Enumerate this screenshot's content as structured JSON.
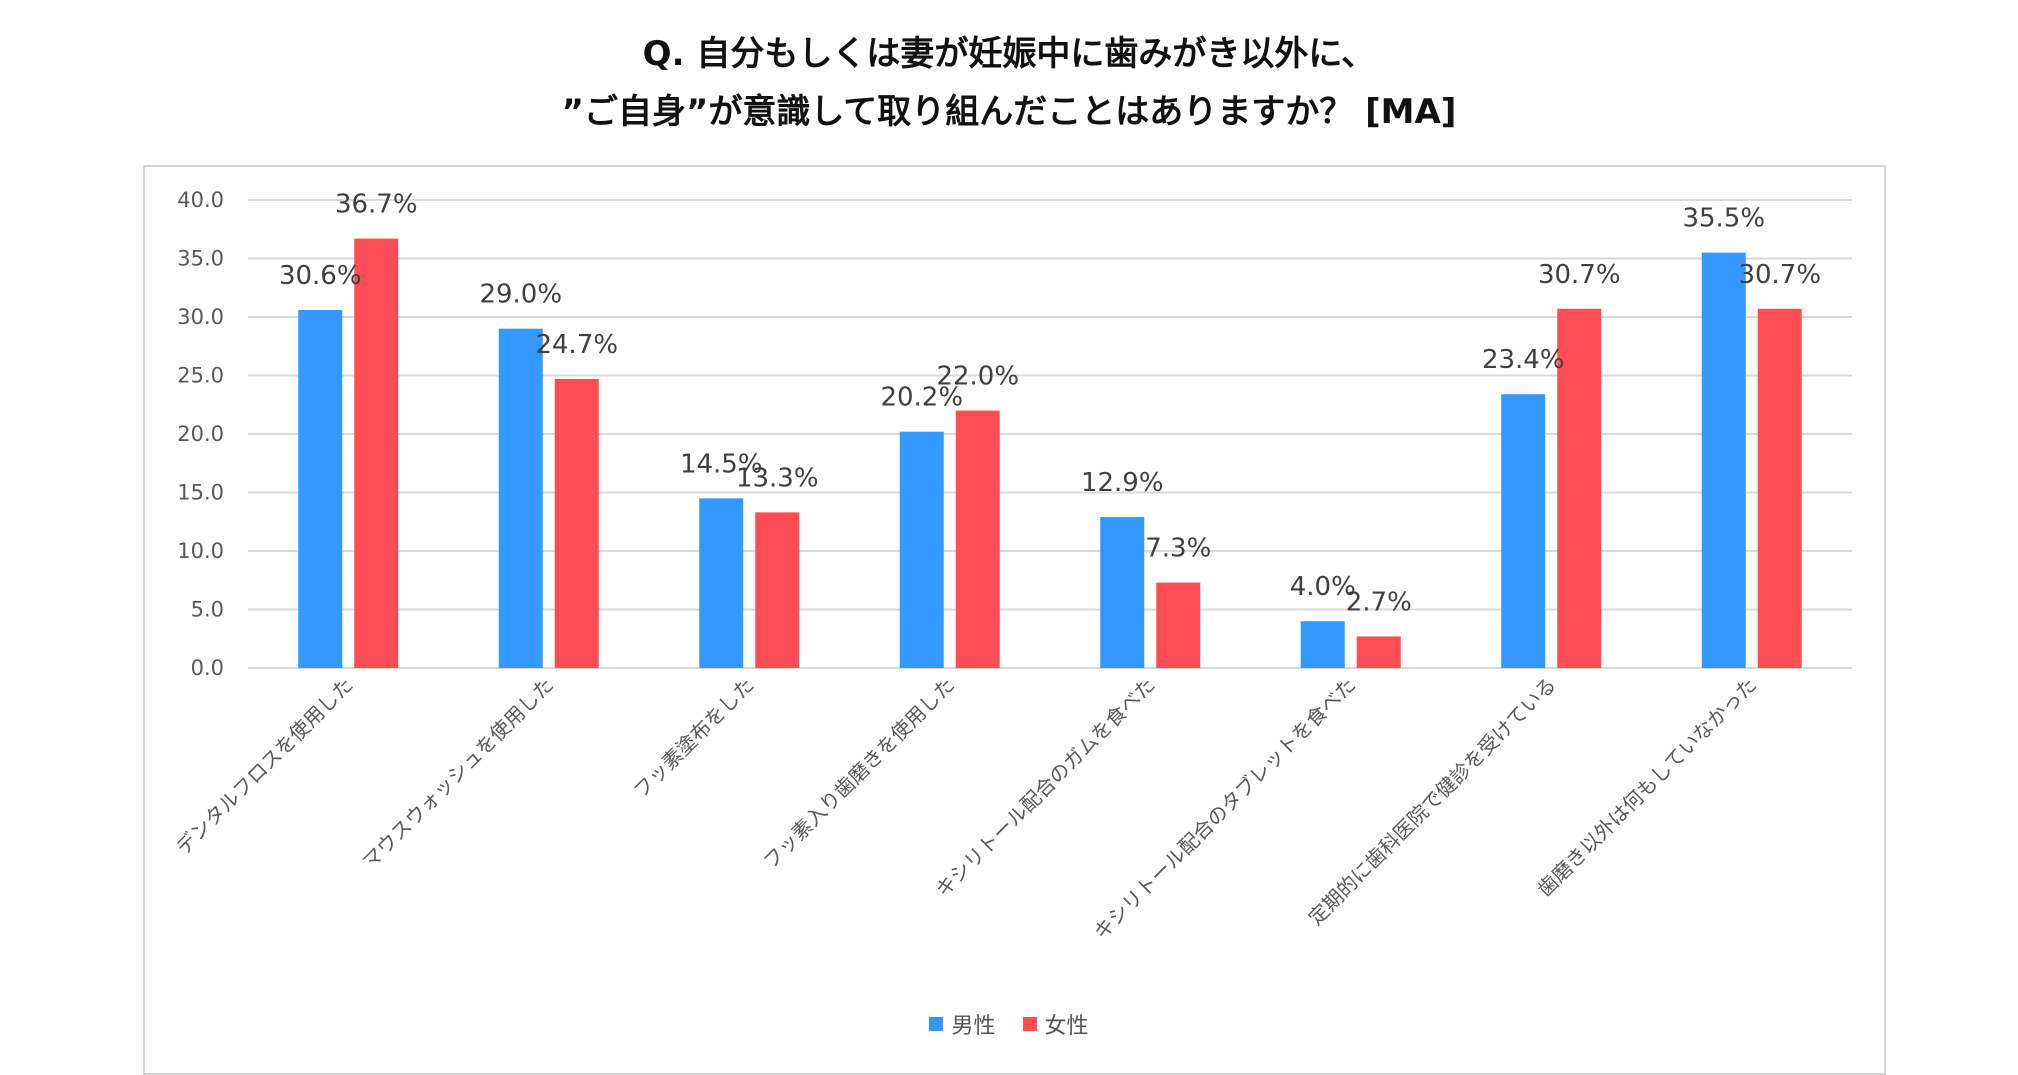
{
  "chart_data": {
    "type": "bar",
    "title_lines": [
      "Q. 自分もしくは妻が妊娠中に歯みがき以外に、",
      "”ご自身”が意識して取り組んだことはありますか？ [MA]"
    ],
    "categories": [
      "デンタルフロスを使用した",
      "マウスウォッシュを使用した",
      "フッ素塗布をした",
      "フッ素入り歯磨きを使用した",
      "キシリトール配合のガムを食べた",
      "キシリトール配合のタブレットを食べた",
      "定期的に歯科医院で健診を受けている",
      "歯磨き以外は何もしていなかった"
    ],
    "series": [
      {
        "name": "男性",
        "color": "#3399ff",
        "values": [
          30.6,
          29.0,
          14.5,
          20.2,
          12.9,
          4.0,
          23.4,
          35.5
        ],
        "labels": [
          "30.6%",
          "29.0%",
          "14.5%",
          "20.2%",
          "12.9%",
          "4.0%",
          "23.4%",
          "35.5%"
        ]
      },
      {
        "name": "女性",
        "color": "#ff4d55",
        "values": [
          36.7,
          24.7,
          13.3,
          22.0,
          7.3,
          2.7,
          30.7,
          30.7
        ],
        "labels": [
          "36.7%",
          "24.7%",
          "13.3%",
          "22.0%",
          "7.3%",
          "2.7%",
          "30.7%",
          "30.7%"
        ]
      }
    ],
    "y_ticks": [
      "0.0",
      "5.0",
      "10.0",
      "15.0",
      "20.0",
      "25.0",
      "30.0",
      "35.0",
      "40.0"
    ],
    "ylim": [
      0,
      40
    ],
    "grid": true,
    "legend_position": "bottom"
  }
}
